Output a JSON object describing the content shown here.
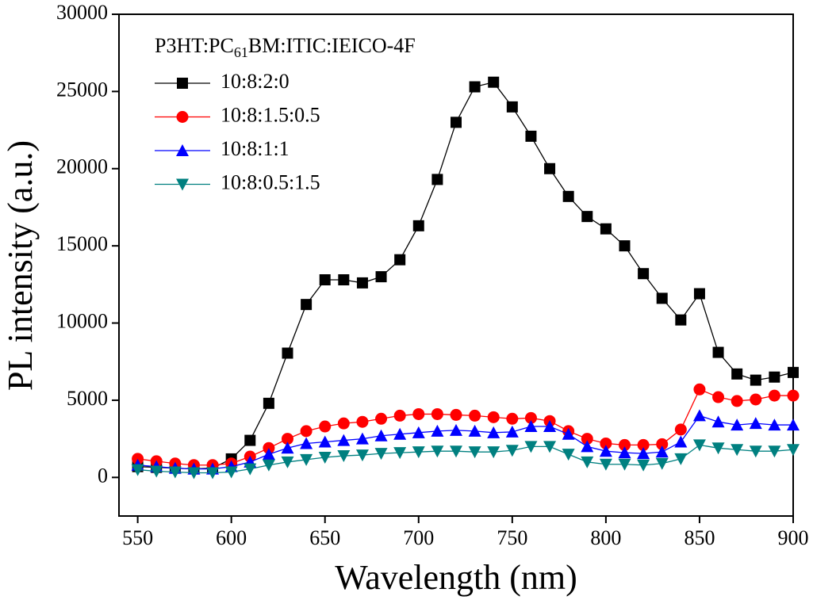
{
  "chart_data": {
    "type": "line",
    "x_label": "Wavelength (nm)",
    "y_label": "PL intensity (a.u.)",
    "legend_title": [
      "P3HT:PC",
      "61",
      "BM:ITIC:IEICO-4F"
    ],
    "legend": "upper left",
    "xlim": [
      540,
      900
    ],
    "ylim": [
      -2500,
      30000
    ],
    "xticks": [
      550,
      600,
      650,
      700,
      750,
      800,
      850,
      900
    ],
    "yticks": [
      0,
      5000,
      10000,
      15000,
      20000,
      25000,
      30000
    ],
    "x": [
      550,
      560,
      570,
      580,
      590,
      600,
      610,
      620,
      630,
      640,
      650,
      660,
      670,
      680,
      690,
      700,
      710,
      720,
      730,
      740,
      750,
      760,
      770,
      780,
      790,
      800,
      810,
      820,
      830,
      840,
      850,
      860,
      870,
      880,
      890,
      900
    ],
    "series": [
      {
        "name": "10:8:2:0",
        "color": "#000000",
        "marker": "square",
        "values": [
          700,
          650,
          600,
          550,
          600,
          1200,
          2400,
          4800,
          8050,
          11200,
          12800,
          12800,
          12600,
          13000,
          14100,
          16300,
          19300,
          23000,
          25300,
          25600,
          24000,
          22100,
          20000,
          18200,
          16900,
          16100,
          15000,
          13200,
          11600,
          10200,
          11900,
          8100,
          6700,
          6300,
          6500,
          6800
        ]
      },
      {
        "name": "10:8:1.5:0.5",
        "color": "#ff0000",
        "marker": "circle",
        "values": [
          1200,
          1050,
          900,
          800,
          800,
          900,
          1350,
          1900,
          2500,
          3000,
          3300,
          3500,
          3600,
          3800,
          4000,
          4100,
          4100,
          4050,
          4000,
          3900,
          3800,
          3850,
          3650,
          3000,
          2500,
          2200,
          2100,
          2100,
          2150,
          3100,
          5700,
          5200,
          4950,
          5050,
          5300,
          5300
        ]
      },
      {
        "name": "10:8:1:1",
        "color": "#0000ff",
        "marker": "triangle-up",
        "values": [
          800,
          700,
          600,
          550,
          550,
          700,
          1000,
          1500,
          1900,
          2200,
          2300,
          2400,
          2500,
          2700,
          2800,
          2900,
          3000,
          3050,
          3000,
          2900,
          2950,
          3300,
          3300,
          2800,
          2000,
          1700,
          1600,
          1550,
          1650,
          2300,
          4000,
          3600,
          3400,
          3500,
          3400,
          3400
        ]
      },
      {
        "name": "10:8:0.5:1.5",
        "color": "#008080",
        "marker": "triangle-down",
        "values": [
          500,
          400,
          350,
          300,
          300,
          350,
          550,
          800,
          1000,
          1150,
          1300,
          1400,
          1450,
          1550,
          1600,
          1650,
          1700,
          1700,
          1650,
          1650,
          1750,
          2000,
          2000,
          1500,
          1000,
          850,
          850,
          800,
          900,
          1200,
          2100,
          1900,
          1800,
          1700,
          1700,
          1800
        ]
      }
    ]
  }
}
